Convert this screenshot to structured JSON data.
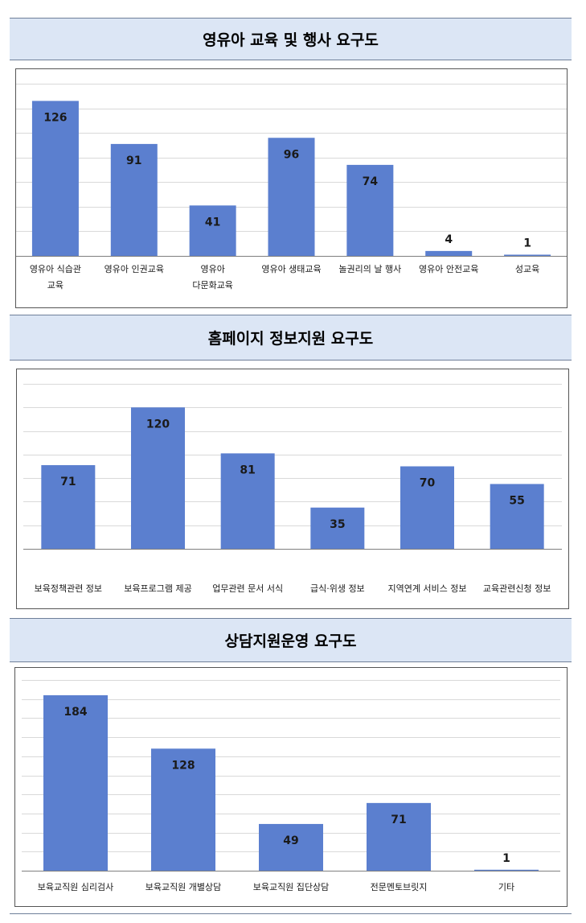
{
  "chart_data": [
    {
      "type": "bar",
      "title": "영유아 교육 및 행사 요구도",
      "categories": [
        [
          "영유아 식습관",
          "교육"
        ],
        [
          "영유아 인권교육"
        ],
        [
          "영유아",
          "다문화교육"
        ],
        [
          "영유아 생태교육"
        ],
        [
          "놀권리의 날 행사"
        ],
        [
          "영유아 안전교육"
        ],
        [
          "성교육"
        ]
      ],
      "values": [
        126,
        91,
        41,
        96,
        74,
        4,
        1
      ],
      "ylim": [
        0,
        140
      ],
      "gridlines": 7,
      "grid": true,
      "legend": "none"
    },
    {
      "type": "bar",
      "title": "홈페이지 정보지원 요구도",
      "categories": [
        [
          "보육정책관련 정보"
        ],
        [
          "보육프로그램 제공"
        ],
        [
          "업무관련 문서 서식"
        ],
        [
          "급식·위생 정보"
        ],
        [
          "지역연계 서비스 정보"
        ],
        [
          "교육관련신청 정보"
        ]
      ],
      "values": [
        71,
        120,
        81,
        35,
        70,
        55
      ],
      "ylim": [
        0,
        140
      ],
      "gridlines": 7,
      "grid": true,
      "legend": "none"
    },
    {
      "type": "bar",
      "title": "상담지원운영 요구도",
      "categories": [
        [
          "보육교직원 심리검사"
        ],
        [
          "보육교직원 개별상담"
        ],
        [
          "보육교직원 집단상담"
        ],
        [
          "전문멘토브릿지"
        ],
        [
          "기타"
        ]
      ],
      "values": [
        184,
        128,
        49,
        71,
        1
      ],
      "ylim": [
        0,
        200
      ],
      "gridlines": 10,
      "grid": true,
      "legend": "none"
    }
  ],
  "colors": {
    "bar": "#5b7fcf",
    "header_bg": "#dce6f5",
    "grid": "#d9d9d9"
  }
}
